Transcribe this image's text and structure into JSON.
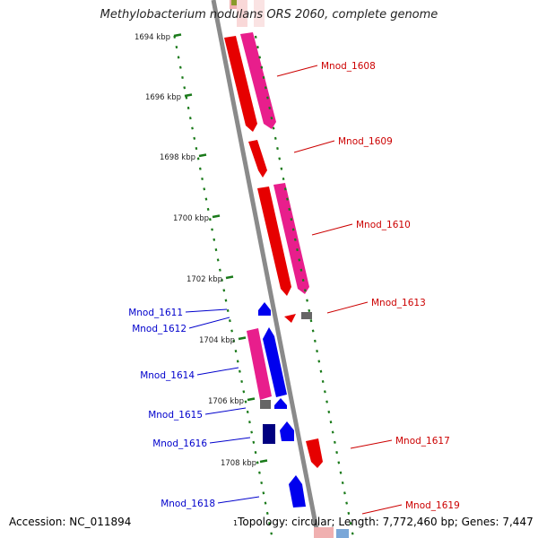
{
  "title": "Methylobacterium nodulans ORS 2060, complete genome",
  "footer": {
    "accession": "Accession: NC_011894",
    "topology_marker": "1",
    "summary": "Topology: circular; Length: 7,772,460 bp; Genes: 7,447"
  },
  "colors": {
    "backbone": "#888888",
    "tick": "#1a7a1a",
    "plus_label": "#cc0000",
    "minus_label": "#0000cc"
  },
  "scale_labels": [
    "1694 kbp",
    "1696 kbp",
    "1698 kbp",
    "1700 kbp",
    "1702 kbp",
    "1704 kbp",
    "1706 kbp",
    "1708 kbp"
  ],
  "genes": [
    {
      "name": "Mnod_1608",
      "strand": "+"
    },
    {
      "name": "Mnod_1609",
      "strand": "+"
    },
    {
      "name": "Mnod_1610",
      "strand": "+"
    },
    {
      "name": "Mnod_1613",
      "strand": "+"
    },
    {
      "name": "Mnod_1617",
      "strand": "+"
    },
    {
      "name": "Mnod_1619",
      "strand": "+"
    },
    {
      "name": "Mnod_1611",
      "strand": "-"
    },
    {
      "name": "Mnod_1612",
      "strand": "-"
    },
    {
      "name": "Mnod_1614",
      "strand": "-"
    },
    {
      "name": "Mnod_1615",
      "strand": "-"
    },
    {
      "name": "Mnod_1616",
      "strand": "-"
    },
    {
      "name": "Mnod_1618",
      "strand": "-"
    }
  ]
}
